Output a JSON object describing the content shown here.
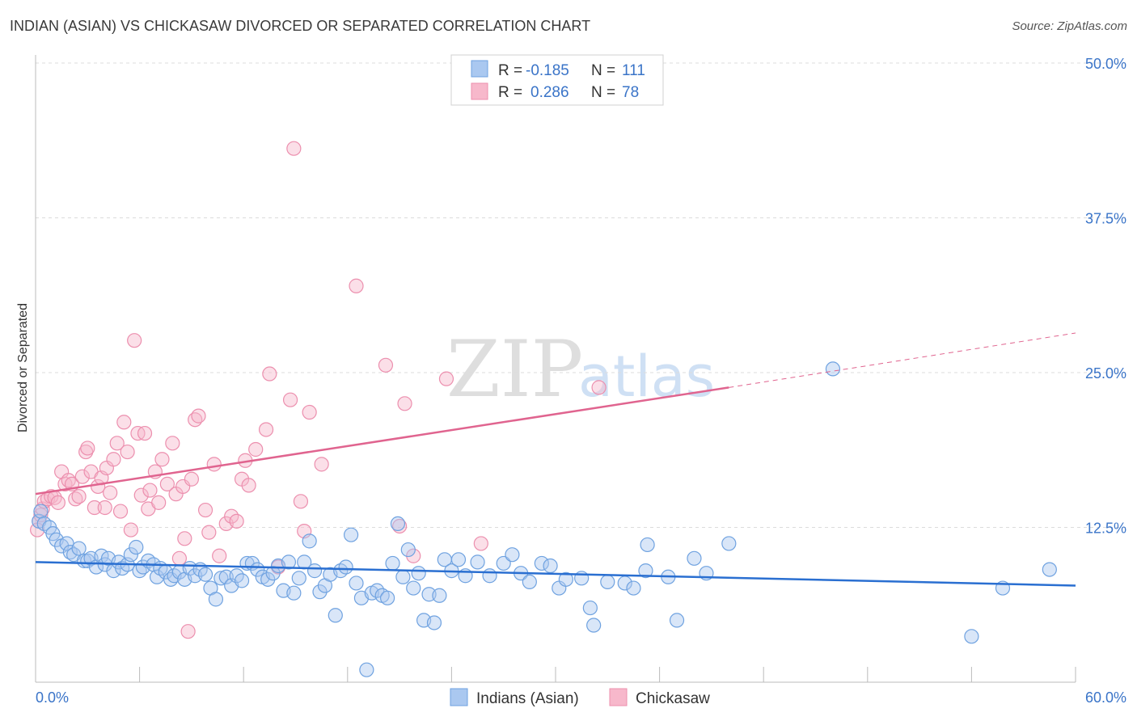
{
  "header": {
    "title": "INDIAN (ASIAN) VS CHICKASAW DIVORCED OR SEPARATED CORRELATION CHART",
    "source": "Source: ZipAtlas.com"
  },
  "watermark": {
    "text1": "ZIP",
    "text2": "atlas"
  },
  "legend_top": {
    "rows": [
      {
        "r_label": "R =",
        "r_value": "-0.185",
        "n_label": "N =",
        "n_value": "111",
        "color": "#aac8f0"
      },
      {
        "r_label": "R =",
        "r_value": "0.286",
        "n_label": "N =",
        "n_value": "78",
        "color": "#f7b8cb"
      }
    ]
  },
  "chart_data": {
    "type": "scatter",
    "title": "INDIAN (ASIAN) VS CHICKASAW DIVORCED OR SEPARATED CORRELATION CHART",
    "xlabel": "",
    "ylabel": "Divorced or Separated",
    "xlim": [
      0,
      60
    ],
    "ylim": [
      0,
      50
    ],
    "x_tick_labels": [
      "0.0%",
      "60.0%"
    ],
    "y_ticks": [
      12.5,
      25.0,
      37.5,
      50.0
    ],
    "y_tick_labels": [
      "12.5%",
      "25.0%",
      "37.5%",
      "50.0%"
    ],
    "grid": "horizontal dashed",
    "legend_position": "bottom-center",
    "colors": {
      "indians": "#6fa2e0",
      "indians_fill": "#aac8f0",
      "indians_line": "#2a6fd1",
      "chickasaw": "#ec8fae",
      "chickasaw_fill": "#f7b8cb",
      "chickasaw_line": "#e0648f",
      "tick_label": "#3a74c8"
    },
    "series": [
      {
        "name": "Indians (Asian)",
        "r": -0.185,
        "n": 111,
        "trend": {
          "x": [
            0,
            60
          ],
          "y": [
            9.7,
            7.8
          ]
        },
        "points": [
          [
            0.2,
            13.0
          ],
          [
            0.3,
            13.8
          ],
          [
            0.5,
            12.8
          ],
          [
            0.8,
            12.5
          ],
          [
            1.0,
            12.0
          ],
          [
            1.2,
            11.5
          ],
          [
            1.5,
            11.0
          ],
          [
            1.8,
            11.2
          ],
          [
            2.0,
            10.5
          ],
          [
            2.2,
            10.3
          ],
          [
            2.5,
            10.8
          ],
          [
            2.8,
            9.8
          ],
          [
            3.0,
            9.8
          ],
          [
            3.2,
            10.0
          ],
          [
            3.5,
            9.3
          ],
          [
            3.8,
            10.2
          ],
          [
            4.0,
            9.5
          ],
          [
            4.2,
            10.0
          ],
          [
            4.5,
            9.0
          ],
          [
            4.8,
            9.7
          ],
          [
            5.0,
            9.2
          ],
          [
            5.3,
            9.5
          ],
          [
            5.5,
            10.3
          ],
          [
            5.8,
            10.9
          ],
          [
            6.0,
            9.0
          ],
          [
            6.2,
            9.3
          ],
          [
            6.5,
            9.8
          ],
          [
            6.8,
            9.5
          ],
          [
            7.0,
            8.5
          ],
          [
            7.2,
            9.2
          ],
          [
            7.5,
            8.9
          ],
          [
            7.8,
            8.3
          ],
          [
            8.0,
            8.6
          ],
          [
            8.3,
            8.9
          ],
          [
            8.6,
            8.3
          ],
          [
            8.9,
            9.2
          ],
          [
            9.2,
            8.6
          ],
          [
            9.5,
            9.1
          ],
          [
            9.8,
            8.7
          ],
          [
            10.1,
            7.6
          ],
          [
            10.4,
            6.7
          ],
          [
            10.7,
            8.4
          ],
          [
            11.0,
            8.5
          ],
          [
            11.3,
            7.8
          ],
          [
            11.6,
            8.6
          ],
          [
            11.9,
            8.2
          ],
          [
            12.2,
            9.6
          ],
          [
            12.5,
            9.6
          ],
          [
            12.8,
            9.1
          ],
          [
            13.1,
            8.5
          ],
          [
            13.4,
            8.3
          ],
          [
            13.7,
            8.8
          ],
          [
            14.0,
            9.4
          ],
          [
            14.3,
            7.4
          ],
          [
            14.6,
            9.7
          ],
          [
            14.9,
            7.2
          ],
          [
            15.2,
            8.4
          ],
          [
            15.5,
            9.7
          ],
          [
            15.8,
            11.4
          ],
          [
            16.1,
            9.0
          ],
          [
            16.4,
            7.3
          ],
          [
            16.7,
            7.8
          ],
          [
            17.0,
            8.7
          ],
          [
            17.3,
            5.4
          ],
          [
            17.6,
            9.0
          ],
          [
            17.9,
            9.3
          ],
          [
            18.2,
            11.9
          ],
          [
            18.5,
            8.0
          ],
          [
            18.8,
            6.8
          ],
          [
            19.1,
            1.0
          ],
          [
            19.4,
            7.2
          ],
          [
            19.7,
            7.4
          ],
          [
            20.0,
            7.0
          ],
          [
            20.3,
            6.8
          ],
          [
            20.6,
            9.6
          ],
          [
            20.9,
            12.8
          ],
          [
            21.2,
            8.5
          ],
          [
            21.5,
            10.7
          ],
          [
            21.8,
            7.6
          ],
          [
            22.1,
            8.8
          ],
          [
            22.4,
            5.0
          ],
          [
            22.7,
            7.1
          ],
          [
            23.0,
            4.8
          ],
          [
            23.3,
            7.0
          ],
          [
            23.6,
            9.9
          ],
          [
            24.0,
            9.0
          ],
          [
            24.4,
            9.9
          ],
          [
            24.8,
            8.6
          ],
          [
            25.5,
            9.7
          ],
          [
            26.2,
            8.6
          ],
          [
            27.0,
            9.6
          ],
          [
            27.5,
            10.3
          ],
          [
            28.0,
            8.8
          ],
          [
            28.5,
            8.1
          ],
          [
            29.2,
            9.6
          ],
          [
            29.7,
            9.4
          ],
          [
            30.2,
            7.6
          ],
          [
            30.6,
            8.3
          ],
          [
            31.5,
            8.4
          ],
          [
            32.0,
            6.0
          ],
          [
            32.2,
            4.6
          ],
          [
            33.0,
            8.1
          ],
          [
            34.0,
            8.0
          ],
          [
            34.5,
            7.6
          ],
          [
            35.2,
            9.0
          ],
          [
            35.3,
            11.1
          ],
          [
            36.5,
            8.5
          ],
          [
            37.0,
            5.0
          ],
          [
            38.0,
            10.0
          ],
          [
            38.7,
            8.8
          ],
          [
            40.0,
            11.2
          ],
          [
            46.0,
            25.3
          ],
          [
            54.0,
            3.7
          ],
          [
            55.8,
            7.6
          ],
          [
            58.5,
            9.1
          ]
        ]
      },
      {
        "name": "Chickasaw",
        "r": 0.286,
        "n": 78,
        "trend": {
          "x": [
            0,
            40
          ],
          "y": [
            15.2,
            23.8
          ]
        },
        "trend_dashed": {
          "x": [
            40,
            60
          ],
          "y": [
            23.8,
            28.2
          ]
        },
        "points": [
          [
            0.2,
            13.0
          ],
          [
            0.3,
            13.5
          ],
          [
            0.4,
            14.0
          ],
          [
            0.5,
            14.6
          ],
          [
            0.7,
            14.8
          ],
          [
            0.9,
            15.0
          ],
          [
            1.1,
            14.9
          ],
          [
            1.3,
            14.5
          ],
          [
            1.5,
            17.0
          ],
          [
            1.7,
            16.0
          ],
          [
            1.9,
            16.3
          ],
          [
            2.1,
            16.0
          ],
          [
            2.3,
            14.8
          ],
          [
            2.5,
            15.0
          ],
          [
            2.7,
            16.6
          ],
          [
            2.9,
            18.6
          ],
          [
            3.0,
            18.9
          ],
          [
            3.2,
            17.0
          ],
          [
            3.4,
            14.1
          ],
          [
            3.6,
            15.8
          ],
          [
            3.8,
            16.5
          ],
          [
            4.0,
            14.1
          ],
          [
            4.1,
            17.3
          ],
          [
            4.3,
            15.3
          ],
          [
            4.5,
            18.0
          ],
          [
            4.7,
            19.3
          ],
          [
            4.9,
            13.8
          ],
          [
            5.1,
            21.0
          ],
          [
            5.3,
            18.6
          ],
          [
            5.5,
            12.3
          ],
          [
            5.7,
            27.6
          ],
          [
            5.9,
            20.1
          ],
          [
            6.1,
            15.1
          ],
          [
            6.3,
            20.1
          ],
          [
            6.5,
            14.0
          ],
          [
            6.6,
            15.5
          ],
          [
            6.9,
            17.0
          ],
          [
            7.1,
            14.5
          ],
          [
            7.3,
            18.0
          ],
          [
            7.6,
            16.0
          ],
          [
            7.9,
            19.3
          ],
          [
            8.1,
            15.2
          ],
          [
            8.3,
            10.0
          ],
          [
            8.5,
            15.8
          ],
          [
            8.6,
            11.6
          ],
          [
            8.8,
            4.1
          ],
          [
            9.0,
            16.4
          ],
          [
            9.2,
            21.2
          ],
          [
            9.4,
            21.5
          ],
          [
            9.8,
            13.9
          ],
          [
            10.0,
            12.1
          ],
          [
            10.3,
            17.6
          ],
          [
            10.6,
            10.2
          ],
          [
            11.0,
            12.8
          ],
          [
            11.3,
            13.4
          ],
          [
            11.6,
            13.0
          ],
          [
            11.9,
            16.4
          ],
          [
            12.1,
            17.9
          ],
          [
            12.3,
            15.9
          ],
          [
            12.7,
            18.8
          ],
          [
            13.3,
            20.4
          ],
          [
            13.5,
            24.9
          ],
          [
            14.0,
            9.3
          ],
          [
            14.7,
            22.8
          ],
          [
            14.9,
            43.1
          ],
          [
            15.3,
            14.6
          ],
          [
            15.5,
            12.2
          ],
          [
            15.8,
            21.8
          ],
          [
            16.5,
            17.6
          ],
          [
            18.5,
            32.0
          ],
          [
            20.2,
            25.6
          ],
          [
            21.0,
            12.6
          ],
          [
            21.3,
            22.5
          ],
          [
            21.8,
            10.2
          ],
          [
            23.7,
            24.5
          ],
          [
            25.7,
            11.2
          ],
          [
            32.5,
            23.8
          ],
          [
            0.1,
            12.3
          ]
        ]
      }
    ]
  },
  "legend_bottom": {
    "items": [
      {
        "label": "Indians (Asian)",
        "color": "#aac8f0"
      },
      {
        "label": "Chickasaw",
        "color": "#f7b8cb"
      }
    ]
  }
}
